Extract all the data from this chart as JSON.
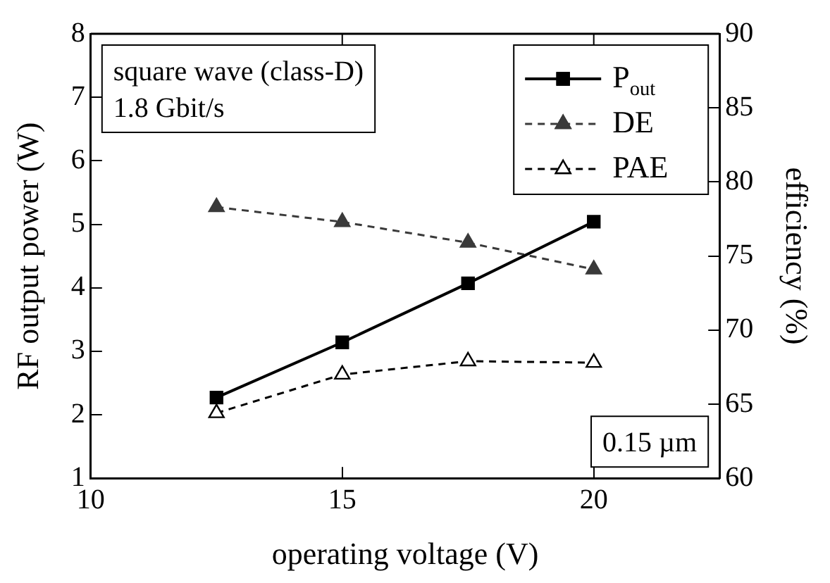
{
  "chart_data": {
    "type": "line",
    "xlabel": "operating voltage (V)",
    "ylabel": "RF output power (W)",
    "y2label": "efficiency (%)",
    "x": [
      12.5,
      15,
      17.5,
      20
    ],
    "xlim": [
      10,
      22.5
    ],
    "xticks": [
      10,
      15,
      20
    ],
    "ylim": [
      1,
      8
    ],
    "yticks": [
      1,
      2,
      3,
      4,
      5,
      6,
      7,
      8
    ],
    "y2lim": [
      60,
      90
    ],
    "y2ticks": [
      60,
      65,
      70,
      75,
      80,
      85,
      90
    ],
    "series": [
      {
        "name": "P$_{out}$",
        "color": "#000000",
        "values": [
          2.27,
          3.14,
          4.07,
          5.04
        ],
        "marker": "square",
        "line_style": "solid"
      },
      {
        "name": "DE",
        "color": "#3a3a3a",
        "values": [
          78.3,
          77.3,
          75.9,
          74.1
        ],
        "axis": "y2",
        "marker": "triangle",
        "line_style": "dashed"
      },
      {
        "name": "PAE",
        "color": "#000000",
        "values": [
          64.4,
          67.0,
          67.9,
          67.8
        ],
        "axis": "y2",
        "marker": "triangle",
        "line_style": "dashed"
      }
    ],
    "annotations": [
      "square wave (class-D)\n1.8 Gbit/s",
      "0.15 µm"
    ],
    "grid": false,
    "legend": "top right"
  }
}
